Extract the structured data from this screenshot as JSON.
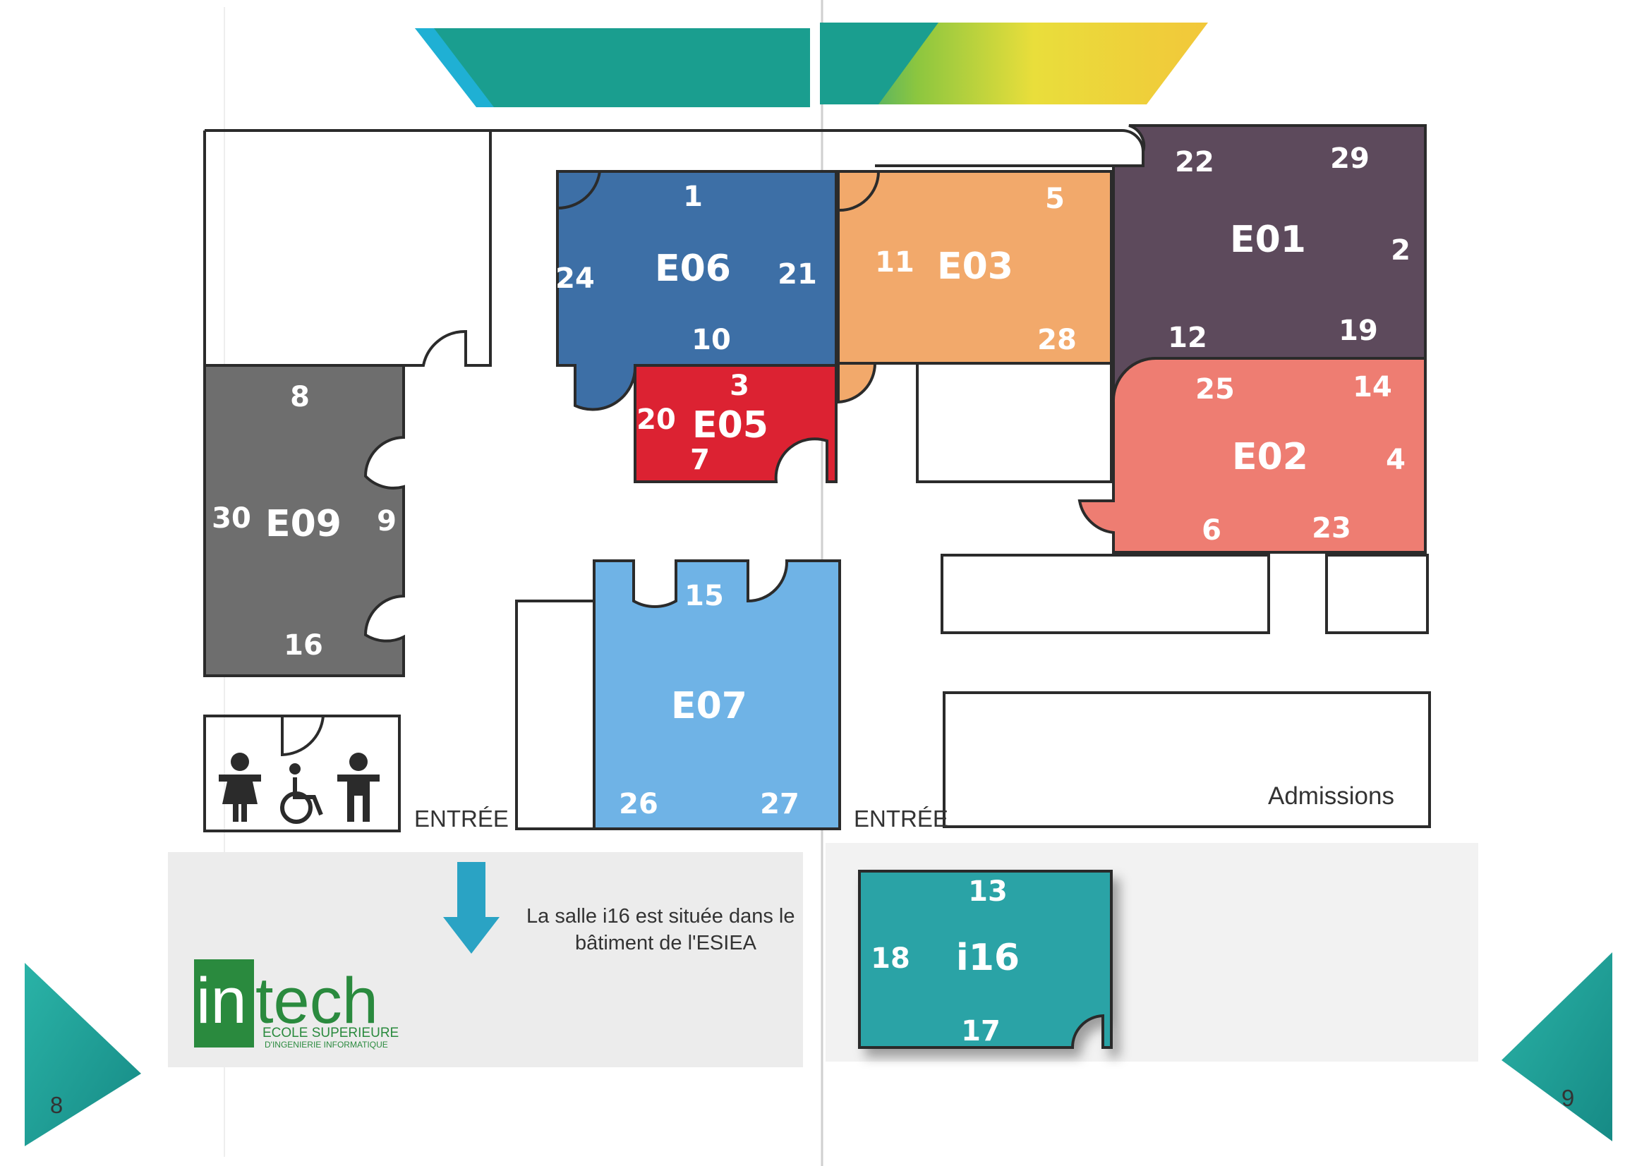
{
  "title_banner": {
    "colors": [
      "#1a9e8f",
      "#2aa9a0",
      "#8cc63f",
      "#f2e13a"
    ]
  },
  "rooms": {
    "E01": {
      "name": "E01",
      "color": "#5d4a5c",
      "seats": [
        "22",
        "29",
        "2",
        "12",
        "19"
      ]
    },
    "E02": {
      "name": "E02",
      "color": "#ee7d72",
      "seats": [
        "25",
        "14",
        "4",
        "6",
        "23"
      ]
    },
    "E03": {
      "name": "E03",
      "color": "#f2a96b",
      "seats": [
        "5",
        "11",
        "28"
      ]
    },
    "E05": {
      "name": "E05",
      "color": "#dc2232",
      "seats": [
        "3",
        "20",
        "7"
      ]
    },
    "E06": {
      "name": "E06",
      "color": "#3d6fa6",
      "seats": [
        "1",
        "24",
        "21",
        "10"
      ]
    },
    "E07": {
      "name": "E07",
      "color": "#6fb3e6",
      "seats": [
        "15",
        "26",
        "27"
      ]
    },
    "E09": {
      "name": "E09",
      "color": "#6e6e6e",
      "seats": [
        "8",
        "30",
        "9",
        "16"
      ]
    },
    "i16": {
      "name": "i16",
      "color": "#2aa3a6",
      "seats": [
        "13",
        "18",
        "17"
      ]
    }
  },
  "labels": {
    "entrance_left": "ENTRÉE",
    "entrance_right": "ENTRÉE",
    "admissions": "Admissions",
    "note_line1": "La salle i16 est située dans le",
    "note_line2": "bâtiment de l'ESIEA"
  },
  "logo": {
    "brand_in": "in",
    "brand_tech": "tech",
    "subtitle1": "ECOLE SUPERIEURE",
    "subtitle2": "D'INGENIERIE INFORMATIQUE",
    "color": "#2a8a3e"
  },
  "page_numbers": {
    "left": "8",
    "right": "9"
  },
  "icons": [
    "female-icon",
    "wheelchair-icon",
    "male-icon",
    "arrow-down-icon"
  ]
}
